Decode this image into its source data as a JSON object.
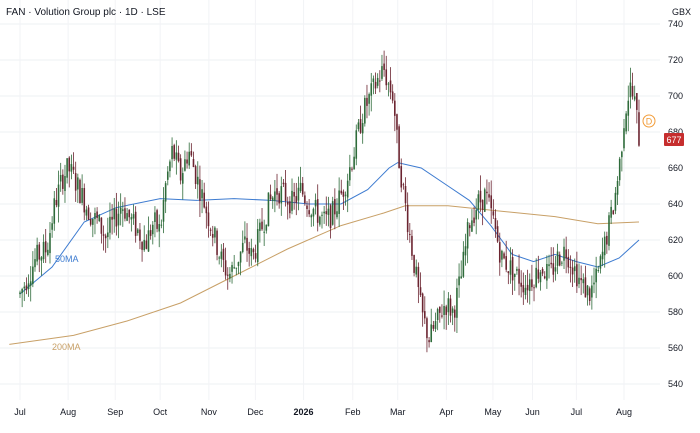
{
  "header": {
    "title": "FAN · Volution Group plc · 1D · LSE",
    "currency": "GBX"
  },
  "price_tag": "677",
  "dividend_marker": "D",
  "colors": {
    "up": "#2e6b3a",
    "down": "#6b2430",
    "ma50": "#3d7bd0",
    "ma200": "#c8a067",
    "price_tag_bg": "#c62e2e",
    "dividend": "#f29c38"
  },
  "chart_data": {
    "type": "candlestick",
    "title": "FAN · Volution Group plc · 1D · LSE",
    "ylabel": "GBX",
    "ylim": [
      530,
      745
    ],
    "y_ticks": [
      "540",
      "560",
      "580",
      "600",
      "620",
      "640",
      "660",
      "680",
      "700",
      "720",
      "740"
    ],
    "x_ticks": [
      {
        "label": "Jul",
        "t": 0
      },
      {
        "label": "Aug",
        "t": 0.09
      },
      {
        "label": "Sep",
        "t": 0.178
      },
      {
        "label": "Oct",
        "t": 0.262
      },
      {
        "label": "Nov",
        "t": 0.353
      },
      {
        "label": "Dec",
        "t": 0.44
      },
      {
        "label": "2026",
        "t": 0.53,
        "bold": true
      },
      {
        "label": "Feb",
        "t": 0.622
      },
      {
        "label": "Mar",
        "t": 0.706
      },
      {
        "label": "Apr",
        "t": 0.797
      },
      {
        "label": "May",
        "t": 0.884
      },
      {
        "label": "Jun",
        "t": 0.958
      },
      {
        "label": "Jul",
        "t": 1.04
      },
      {
        "label": "Aug",
        "t": 1.129
      }
    ],
    "close_path": [
      [
        0,
        590
      ],
      [
        0.015,
        600
      ],
      [
        0.03,
        610
      ],
      [
        0.05,
        615
      ],
      [
        0.065,
        640
      ],
      [
        0.08,
        655
      ],
      [
        0.09,
        660
      ],
      [
        0.1,
        655
      ],
      [
        0.115,
        645
      ],
      [
        0.13,
        635
      ],
      [
        0.145,
        630
      ],
      [
        0.16,
        622
      ],
      [
        0.175,
        630
      ],
      [
        0.19,
        640
      ],
      [
        0.205,
        632
      ],
      [
        0.22,
        625
      ],
      [
        0.235,
        618
      ],
      [
        0.25,
        630
      ],
      [
        0.262,
        625
      ],
      [
        0.272,
        650
      ],
      [
        0.285,
        670
      ],
      [
        0.3,
        655
      ],
      [
        0.315,
        670
      ],
      [
        0.33,
        655
      ],
      [
        0.345,
        640
      ],
      [
        0.36,
        625
      ],
      [
        0.375,
        610
      ],
      [
        0.39,
        600
      ],
      [
        0.405,
        608
      ],
      [
        0.42,
        618
      ],
      [
        0.435,
        610
      ],
      [
        0.45,
        625
      ],
      [
        0.465,
        640
      ],
      [
        0.48,
        648
      ],
      [
        0.495,
        645
      ],
      [
        0.51,
        640
      ],
      [
        0.525,
        648
      ],
      [
        0.54,
        640
      ],
      [
        0.555,
        635
      ],
      [
        0.57,
        630
      ],
      [
        0.585,
        635
      ],
      [
        0.6,
        645
      ],
      [
        0.612,
        655
      ],
      [
        0.625,
        670
      ],
      [
        0.64,
        690
      ],
      [
        0.655,
        700
      ],
      [
        0.67,
        710
      ],
      [
        0.68,
        715
      ],
      [
        0.69,
        705
      ],
      [
        0.698,
        700
      ],
      [
        0.706,
        670
      ],
      [
        0.72,
        640
      ],
      [
        0.735,
        610
      ],
      [
        0.75,
        580
      ],
      [
        0.765,
        565
      ],
      [
        0.78,
        575
      ],
      [
        0.795,
        585
      ],
      [
        0.81,
        580
      ],
      [
        0.825,
        600
      ],
      [
        0.84,
        630
      ],
      [
        0.855,
        640
      ],
      [
        0.87,
        645
      ],
      [
        0.885,
        630
      ],
      [
        0.9,
        610
      ],
      [
        0.915,
        605
      ],
      [
        0.93,
        600
      ],
      [
        0.945,
        595
      ],
      [
        0.96,
        600
      ],
      [
        0.975,
        605
      ],
      [
        0.99,
        600
      ],
      [
        1.005,
        610
      ],
      [
        1.02,
        615
      ],
      [
        1.035,
        605
      ],
      [
        1.05,
        595
      ],
      [
        1.065,
        590
      ],
      [
        1.08,
        600
      ],
      [
        1.095,
        620
      ],
      [
        1.11,
        640
      ],
      [
        1.12,
        660
      ],
      [
        1.13,
        690
      ],
      [
        1.14,
        705
      ],
      [
        1.15,
        695
      ],
      [
        1.157,
        677
      ]
    ],
    "series": [
      {
        "name": "50MA",
        "values": [
          [
            0,
            590
          ],
          [
            0.06,
            605
          ],
          [
            0.12,
            630
          ],
          [
            0.18,
            638
          ],
          [
            0.262,
            643
          ],
          [
            0.33,
            642
          ],
          [
            0.4,
            643
          ],
          [
            0.47,
            642
          ],
          [
            0.54,
            640
          ],
          [
            0.6,
            640
          ],
          [
            0.65,
            648
          ],
          [
            0.69,
            660
          ],
          [
            0.706,
            663
          ],
          [
            0.75,
            660
          ],
          [
            0.8,
            650
          ],
          [
            0.84,
            642
          ],
          [
            0.88,
            628
          ],
          [
            0.92,
            612
          ],
          [
            0.96,
            608
          ],
          [
            1.0,
            612
          ],
          [
            1.04,
            608
          ],
          [
            1.08,
            605
          ],
          [
            1.12,
            610
          ],
          [
            1.157,
            620
          ]
        ]
      },
      {
        "name": "200MA",
        "values": [
          [
            -0.02,
            562
          ],
          [
            0.1,
            567
          ],
          [
            0.2,
            575
          ],
          [
            0.3,
            585
          ],
          [
            0.4,
            600
          ],
          [
            0.5,
            615
          ],
          [
            0.6,
            628
          ],
          [
            0.68,
            635
          ],
          [
            0.72,
            639
          ],
          [
            0.8,
            639
          ],
          [
            0.9,
            636
          ],
          [
            1.0,
            633
          ],
          [
            1.08,
            629
          ],
          [
            1.157,
            630
          ]
        ]
      }
    ]
  }
}
